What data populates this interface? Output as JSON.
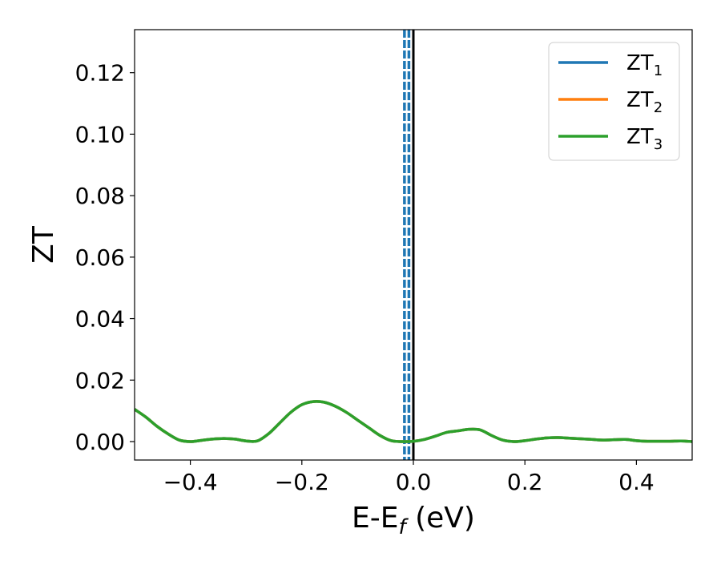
{
  "chart_data": {
    "type": "line",
    "xlabel": "E-E",
    "xlabel_sub": "f",
    "xlabel_unit": " (eV)",
    "ylabel": "ZT",
    "xlim": [
      -0.5,
      0.5
    ],
    "ylim": [
      -0.006,
      0.134
    ],
    "xticks": [
      -0.4,
      -0.2,
      0.0,
      0.2,
      0.4
    ],
    "xtick_labels": [
      "−0.4",
      "−0.2",
      "0.0",
      "0.2",
      "0.4"
    ],
    "yticks": [
      0.0,
      0.02,
      0.04,
      0.06,
      0.08,
      0.1,
      0.12
    ],
    "ytick_labels": [
      "0.00",
      "0.02",
      "0.04",
      "0.06",
      "0.08",
      "0.10",
      "0.12"
    ],
    "grid": false,
    "legend_position": "top-right",
    "vertical_lines": [
      {
        "x": 0.0,
        "color": "#000000",
        "style": "solid"
      },
      {
        "x": -0.016,
        "color": "#1f77b4",
        "style": "dashed"
      },
      {
        "x": -0.008,
        "color": "#1f77b4",
        "style": "dashed"
      }
    ],
    "x": [
      -0.5,
      -0.48,
      -0.46,
      -0.44,
      -0.42,
      -0.4,
      -0.38,
      -0.36,
      -0.34,
      -0.32,
      -0.3,
      -0.28,
      -0.26,
      -0.24,
      -0.22,
      -0.2,
      -0.18,
      -0.16,
      -0.14,
      -0.12,
      -0.1,
      -0.08,
      -0.06,
      -0.04,
      -0.02,
      0.0,
      0.02,
      0.04,
      0.06,
      0.08,
      0.1,
      0.12,
      0.14,
      0.16,
      0.18,
      0.2,
      0.22,
      0.24,
      0.26,
      0.28,
      0.3,
      0.32,
      0.34,
      0.36,
      0.38,
      0.4,
      0.42,
      0.44,
      0.46,
      0.48,
      0.5
    ],
    "series": [
      {
        "name": "ZT",
        "sub": "1",
        "color": "#1f77b4",
        "values": [
          0.0105,
          0.008,
          0.005,
          0.0025,
          0.0005,
          0.0,
          0.0004,
          0.0008,
          0.001,
          0.0008,
          0.0002,
          0.0002,
          0.0025,
          0.006,
          0.0095,
          0.012,
          0.013,
          0.0128,
          0.0115,
          0.0095,
          0.007,
          0.0045,
          0.002,
          0.0003,
          0.0,
          0.0001,
          0.0007,
          0.0018,
          0.003,
          0.0035,
          0.004,
          0.0038,
          0.002,
          0.0005,
          0.0,
          0.0003,
          0.0008,
          0.0012,
          0.0013,
          0.0011,
          0.0009,
          0.0007,
          0.0005,
          0.0006,
          0.0007,
          0.0003,
          0.0001,
          0.0001,
          0.0001,
          0.0002,
          0.0
        ]
      },
      {
        "name": "ZT",
        "sub": "2",
        "color": "#ff7f0e",
        "values": [
          0.0105,
          0.008,
          0.005,
          0.0025,
          0.0005,
          0.0,
          0.0004,
          0.0008,
          0.001,
          0.0008,
          0.0002,
          0.0002,
          0.0025,
          0.006,
          0.0095,
          0.012,
          0.013,
          0.0128,
          0.0115,
          0.0095,
          0.007,
          0.0045,
          0.002,
          0.0003,
          0.0,
          0.0001,
          0.0007,
          0.0018,
          0.003,
          0.0035,
          0.004,
          0.0038,
          0.002,
          0.0005,
          0.0,
          0.0003,
          0.0008,
          0.0012,
          0.0013,
          0.0011,
          0.0009,
          0.0007,
          0.0005,
          0.0006,
          0.0007,
          0.0003,
          0.0001,
          0.0001,
          0.0001,
          0.0002,
          0.0
        ]
      },
      {
        "name": "ZT",
        "sub": "3",
        "color": "#2ca02c",
        "values": [
          0.0105,
          0.008,
          0.005,
          0.0025,
          0.0005,
          0.0,
          0.0004,
          0.0008,
          0.001,
          0.0008,
          0.0002,
          0.0002,
          0.0025,
          0.006,
          0.0095,
          0.012,
          0.013,
          0.0128,
          0.0115,
          0.0095,
          0.007,
          0.0045,
          0.002,
          0.0003,
          0.0,
          0.0001,
          0.0007,
          0.0018,
          0.003,
          0.0035,
          0.004,
          0.0038,
          0.002,
          0.0005,
          0.0,
          0.0003,
          0.0008,
          0.0012,
          0.0013,
          0.0011,
          0.0009,
          0.0007,
          0.0005,
          0.0006,
          0.0007,
          0.0003,
          0.0001,
          0.0001,
          0.0001,
          0.0002,
          0.0
        ]
      }
    ]
  }
}
